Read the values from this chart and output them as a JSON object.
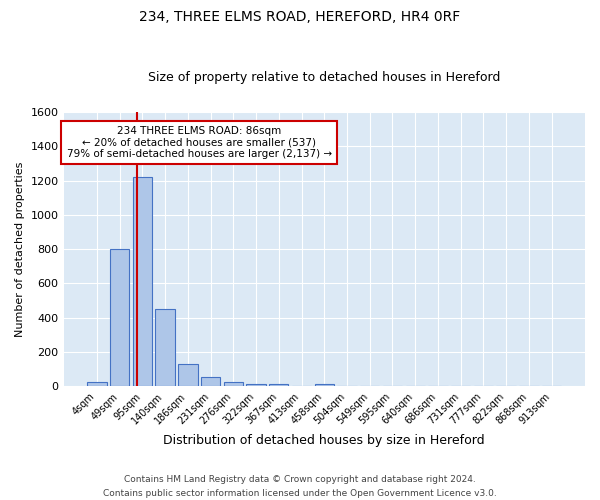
{
  "title1": "234, THREE ELMS ROAD, HEREFORD, HR4 0RF",
  "title2": "Size of property relative to detached houses in Hereford",
  "xlabel": "Distribution of detached houses by size in Hereford",
  "ylabel": "Number of detached properties",
  "footer1": "Contains HM Land Registry data © Crown copyright and database right 2024.",
  "footer2": "Contains public sector information licensed under the Open Government Licence v3.0.",
  "bar_labels": [
    "4sqm",
    "49sqm",
    "95sqm",
    "140sqm",
    "186sqm",
    "231sqm",
    "276sqm",
    "322sqm",
    "367sqm",
    "413sqm",
    "458sqm",
    "504sqm",
    "549sqm",
    "595sqm",
    "640sqm",
    "686sqm",
    "731sqm",
    "777sqm",
    "822sqm",
    "868sqm",
    "913sqm"
  ],
  "bar_values": [
    25,
    800,
    1220,
    450,
    130,
    55,
    25,
    15,
    12,
    0,
    12,
    0,
    0,
    0,
    0,
    0,
    0,
    0,
    0,
    0,
    0
  ],
  "bar_color": "#aec6e8",
  "bar_edge_color": "#4472c4",
  "background_color": "#dce9f5",
  "grid_color": "#ffffff",
  "fig_background": "#ffffff",
  "vline_x": 1.78,
  "vline_color": "#cc0000",
  "annotation_text": "234 THREE ELMS ROAD: 86sqm\n← 20% of detached houses are smaller (537)\n79% of semi-detached houses are larger (2,137) →",
  "annotation_box_color": "#ffffff",
  "annotation_box_edge_color": "#cc0000",
  "ylim": [
    0,
    1600
  ],
  "yticks": [
    0,
    200,
    400,
    600,
    800,
    1000,
    1200,
    1400,
    1600
  ],
  "title1_fontsize": 10,
  "title2_fontsize": 9,
  "xlabel_fontsize": 9,
  "ylabel_fontsize": 8,
  "xtick_fontsize": 7,
  "ytick_fontsize": 8,
  "footer_fontsize": 6.5
}
